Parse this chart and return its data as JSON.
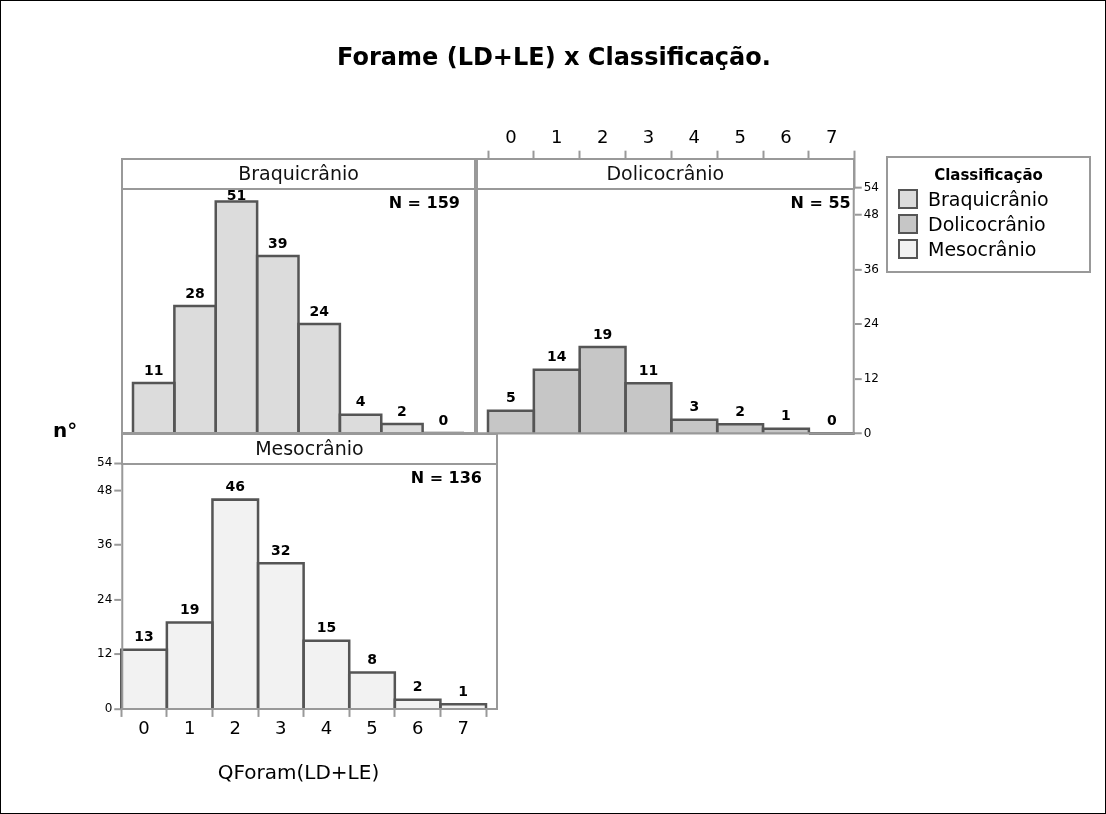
{
  "chart_data": [
    {
      "type": "bar",
      "title": "Forame (LD+LE) x Classificação.",
      "legend": "right",
      "legend_title": "Classificação",
      "categories": [
        "0",
        "1",
        "2",
        "3",
        "4",
        "5",
        "6",
        "7"
      ],
      "series": [
        {
          "name": "Braquicrânio",
          "color": "#dcdcdc",
          "values": [
            11,
            28,
            51,
            39,
            24,
            4,
            2,
            0
          ]
        }
      ],
      "ylim": [
        0,
        54
      ],
      "yticks": [
        0,
        12,
        24,
        36,
        48,
        54
      ],
      "tick_labels": false,
      "data_labels": true,
      "annotations": [
        "N = 159"
      ]
    },
    {
      "type": "bar",
      "legend": "right",
      "categories": [
        "0",
        "1",
        "2",
        "3",
        "4",
        "5",
        "6",
        "7"
      ],
      "series": [
        {
          "name": "Dolicocrânio",
          "color": "#c6c6c6",
          "values": [
            5,
            14,
            19,
            11,
            3,
            2,
            1,
            0
          ]
        }
      ],
      "ylim": [
        0,
        54
      ],
      "yticks": [
        0,
        12,
        24,
        36,
        48,
        54
      ],
      "data_labels": true,
      "annotations": [
        "N = 55"
      ]
    },
    {
      "type": "bar",
      "legend": "right",
      "xlabel": "QForam(LD+LE)",
      "ylabel": "n°",
      "categories": [
        "0",
        "1",
        "2",
        "3",
        "4",
        "5",
        "6",
        "7"
      ],
      "series": [
        {
          "name": "Mesocrânio",
          "color": "#f2f2f2",
          "values": [
            13,
            19,
            46,
            32,
            15,
            8,
            2,
            1
          ]
        }
      ],
      "ylim": [
        0,
        54
      ],
      "yticks": [
        0,
        12,
        24,
        36,
        48,
        54
      ],
      "data_labels": true,
      "annotations": [
        "N = 136"
      ]
    }
  ]
}
